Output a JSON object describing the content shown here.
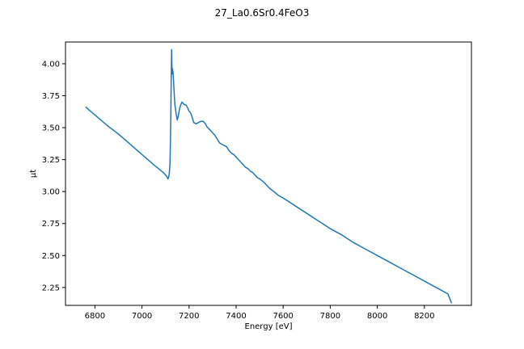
{
  "chart_data": {
    "type": "line",
    "title": "27_La0.6Sr0.4FeO3",
    "xlabel": "Energy [eV]",
    "ylabel": "μt",
    "xlim": [
      6675,
      8400
    ],
    "ylim": [
      2.11,
      4.17
    ],
    "xticks": [
      6800,
      7000,
      7200,
      7400,
      7600,
      7800,
      8000,
      8200
    ],
    "yticks": [
      2.25,
      2.5,
      2.75,
      3.0,
      3.25,
      3.5,
      3.75,
      4.0
    ],
    "xtick_labels": [
      "6800",
      "7000",
      "7200",
      "7400",
      "7600",
      "7800",
      "8000",
      "8200"
    ],
    "ytick_labels": [
      "2.25",
      "2.50",
      "2.75",
      "3.00",
      "3.25",
      "3.50",
      "3.75",
      "4.00"
    ],
    "grid": false,
    "color": "#1f77b4",
    "series": [
      {
        "x": [
          6762,
          6780,
          6800,
          6850,
          6900,
          6950,
          7000,
          7050,
          7090,
          7100,
          7105,
          7110,
          7113,
          7116,
          7119,
          7121,
          7123,
          7124,
          7125,
          7126,
          7127,
          7128,
          7129,
          7130,
          7131,
          7132,
          7134,
          7136,
          7138,
          7140,
          7145,
          7150,
          7155,
          7160,
          7165,
          7170,
          7175,
          7180,
          7185,
          7190,
          7195,
          7200,
          7205,
          7210,
          7215,
          7220,
          7230,
          7240,
          7250,
          7260,
          7265,
          7270,
          7275,
          7280,
          7290,
          7300,
          7310,
          7320,
          7330,
          7340,
          7350,
          7360,
          7370,
          7380,
          7390,
          7400,
          7410,
          7420,
          7430,
          7440,
          7450,
          7460,
          7470,
          7480,
          7490,
          7500,
          7520,
          7540,
          7560,
          7580,
          7600,
          7650,
          7700,
          7750,
          7800,
          7850,
          7900,
          7950,
          8000,
          8050,
          8100,
          8150,
          8200,
          8250,
          8300,
          8315
        ],
        "y": [
          3.66,
          3.63,
          3.6,
          3.52,
          3.45,
          3.37,
          3.29,
          3.21,
          3.15,
          3.13,
          3.12,
          3.1,
          3.11,
          3.14,
          3.22,
          3.4,
          3.65,
          3.86,
          3.98,
          4.11,
          4.0,
          3.92,
          3.95,
          3.96,
          3.94,
          3.93,
          3.87,
          3.8,
          3.73,
          3.68,
          3.61,
          3.56,
          3.6,
          3.65,
          3.68,
          3.7,
          3.69,
          3.68,
          3.68,
          3.67,
          3.65,
          3.63,
          3.62,
          3.6,
          3.57,
          3.54,
          3.53,
          3.54,
          3.55,
          3.55,
          3.54,
          3.53,
          3.51,
          3.5,
          3.48,
          3.46,
          3.44,
          3.41,
          3.38,
          3.37,
          3.36,
          3.35,
          3.32,
          3.3,
          3.29,
          3.27,
          3.25,
          3.23,
          3.21,
          3.19,
          3.18,
          3.16,
          3.15,
          3.13,
          3.11,
          3.1,
          3.07,
          3.03,
          3.0,
          2.97,
          2.95,
          2.89,
          2.83,
          2.77,
          2.71,
          2.66,
          2.6,
          2.55,
          2.5,
          2.45,
          2.4,
          2.35,
          2.3,
          2.25,
          2.2,
          2.13
        ]
      }
    ]
  }
}
